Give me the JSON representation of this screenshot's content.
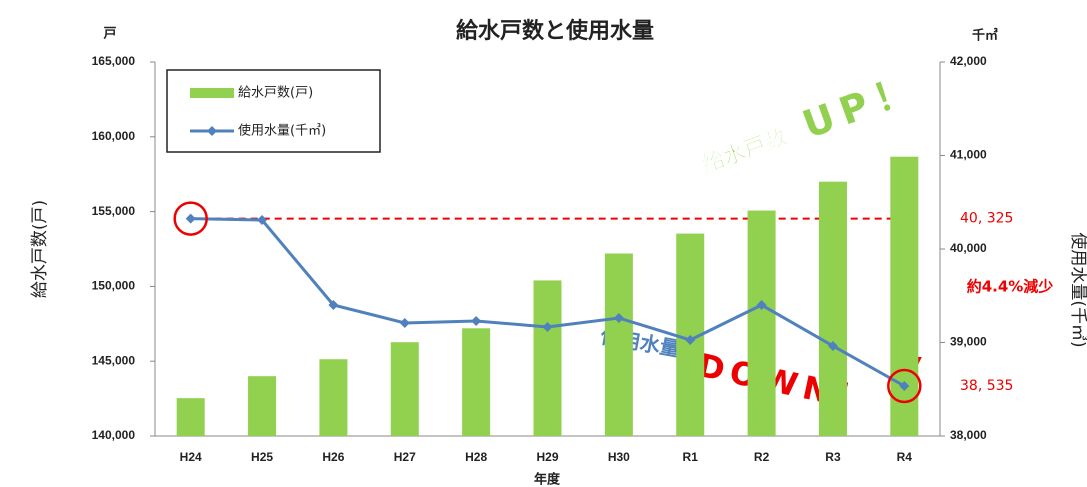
{
  "chart_data": {
    "type": "bar_line",
    "title": "給水戸数と使用水量",
    "y_unit": "戸",
    "y2_unit": "千㎥",
    "ylabel": "給水戸数(戸)",
    "y2label": "使用水量(千㎥)",
    "xlabel": "年度",
    "categories": [
      "H24",
      "H25",
      "H26",
      "H27",
      "H28",
      "H29",
      "H30",
      "R1",
      "R2",
      "R3",
      "R4"
    ],
    "series": [
      {
        "name": "給水戸数(戸)",
        "type": "bar",
        "color": "#92d050",
        "axis": "y",
        "values": [
          142530,
          144000,
          145130,
          146270,
          147200,
          150400,
          152200,
          153530,
          155070,
          157000,
          158670
        ]
      },
      {
        "name": "使用水量(千㎥)",
        "type": "line",
        "color": "#4f81bd",
        "axis": "y2",
        "values": [
          40325,
          40310,
          39401,
          39209,
          39230,
          39166,
          39262,
          39027,
          39401,
          38963,
          38535
        ]
      }
    ],
    "ylim": [
      140000,
      165000
    ],
    "yticks": [
      {
        "value": 140000,
        "label": "140,000"
      },
      {
        "value": 145000,
        "label": "145,000"
      },
      {
        "value": 150000,
        "label": "150,000"
      },
      {
        "value": 155000,
        "label": "155,000"
      },
      {
        "value": 160000,
        "label": "160,000"
      },
      {
        "value": 165000,
        "label": "165,000"
      }
    ],
    "y2lim": [
      38000,
      42000
    ],
    "y2ticks": [
      {
        "value": 38000,
        "label": "38,000"
      },
      {
        "value": 39000,
        "label": "39,000"
      },
      {
        "value": 40000,
        "label": "40,000"
      },
      {
        "value": 41000,
        "label": "41,000"
      },
      {
        "value": 42000,
        "label": "42,000"
      }
    ],
    "highlights": [
      {
        "value": 40325,
        "label": "40, 325"
      },
      {
        "value": 38535,
        "label": "38, 535"
      }
    ],
    "annotations": [
      "給水戸数",
      "UP！",
      "使用水量",
      "DOWN！",
      "約4.4%減少"
    ],
    "legend": "upper left",
    "grid": false
  }
}
